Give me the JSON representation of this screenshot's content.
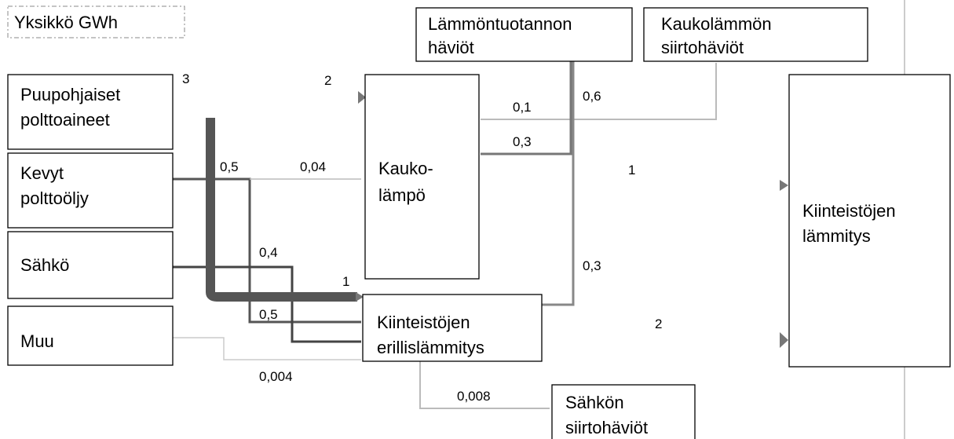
{
  "unit": "Yksikkö GWh",
  "nodes": [
    {
      "label": [
        "Puupohjaiset",
        "polttoaineet"
      ]
    },
    {
      "label": [
        "Kevyt",
        "polttoöljy"
      ]
    },
    {
      "label": [
        "Sähkö"
      ]
    },
    {
      "label": [
        "Muu"
      ]
    },
    {
      "label": [
        "Kauko-",
        "lämpö"
      ]
    },
    {
      "label": [
        "Kiinteistöjen",
        "erillislämmitys"
      ]
    },
    {
      "label": [
        "Lämmöntuotannon",
        "häviöt"
      ]
    },
    {
      "label": [
        "Kaukolämmön",
        "siirtohäviöt"
      ]
    },
    {
      "label": [
        "Kiinteistöjen",
        "lämmitys"
      ]
    },
    {
      "label": [
        "Sähkön",
        "siirtohäviöt"
      ]
    }
  ],
  "flows": [
    {
      "label": "3"
    },
    {
      "label": "2"
    },
    {
      "label": "1"
    },
    {
      "label": "0,5"
    },
    {
      "label": "0,04"
    },
    {
      "label": "0,5"
    },
    {
      "label": "0,4"
    },
    {
      "label": "0,004"
    },
    {
      "label": "1"
    },
    {
      "label": "0,1"
    },
    {
      "label": "0,3"
    },
    {
      "label": "0,6"
    },
    {
      "label": "0,3"
    },
    {
      "label": "2"
    },
    {
      "label": "0,008"
    }
  ]
}
